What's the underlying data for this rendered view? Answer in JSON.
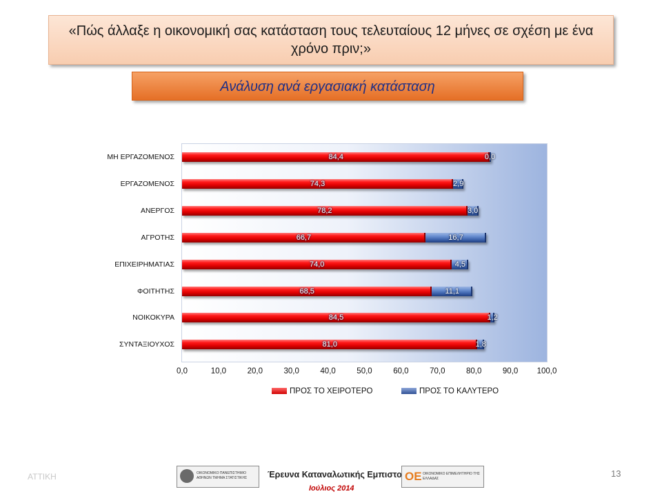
{
  "title": "«Πώς άλλαξε η οικονομική σας κατάσταση τους τελευταίους 12 μήνες σε σχέση με ένα χρόνο πριν;»",
  "subtitle": "Ανάλυση ανά εργασιακή κατάσταση",
  "chart_data": {
    "type": "bar",
    "orientation": "horizontal",
    "stacked": true,
    "categories": [
      "ΜΗ ΕΡΓΑΖΟΜΕΝΟΣ",
      "ΕΡΓΑΖΟΜΕΝΟΣ",
      "ΑΝΕΡΓΟΣ",
      "ΑΓΡΟΤΗΣ",
      "ΕΠΙΧΕΙΡΗΜΑΤΙΑΣ",
      "ΦΟΙΤΗΤΗΣ",
      "ΝΟΙΚΟΚΥΡΑ",
      "ΣΥΝΤΑΞΙΟΥΧΟΣ"
    ],
    "series": [
      {
        "name": "ΠΡΟΣ ΤΟ ΧΕΙΡΟΤΕΡΟ",
        "color": "#e00000",
        "values": [
          84.4,
          74.3,
          78.2,
          66.7,
          74.0,
          68.5,
          84.5,
          81.0
        ],
        "labels": [
          "84,4",
          "74,3",
          "78,2",
          "66,7",
          "74,0",
          "68,5",
          "84,5",
          "81,0"
        ]
      },
      {
        "name": "ΠΡΟΣ ΤΟ ΚΑΛΥΤΕΡΟ",
        "color": "#3f63ad",
        "values": [
          0.0,
          2.9,
          3.0,
          16.7,
          4.5,
          11.1,
          1.2,
          1.8
        ],
        "labels": [
          "0,0",
          "2,9",
          "3,0",
          "16,7",
          "4,5",
          "11,1",
          "1,2",
          "1,8"
        ]
      }
    ],
    "xlim": [
      0,
      100
    ],
    "xticks": [
      "0,0",
      "10,0",
      "20,0",
      "30,0",
      "40,0",
      "50,0",
      "60,0",
      "70,0",
      "80,0",
      "90,0",
      "100,0"
    ],
    "legend_position": "bottom"
  },
  "footer": {
    "region": "ΑΤΤΙΚΗ",
    "logo1_text": "ΟΙΚΟΝΟΜΙΚΟ ΠΑΝΕΠΙΣΤΗΜΙΟ ΑΘΗΝΩΝ ΤΜΗΜΑ ΣΤΑΤΙΣΤΙΚΗΣ",
    "survey_title": "Έρευνα Καταναλωτικής Εμπιστοσύνης",
    "logo2_mark": "ΟΕ",
    "logo2_text": "ΟΙΚΟΝΟΜΙΚΟ ΕΠΙΜΕΛΗΤΗΡΙΟ ΤΗΣ ΕΛΛΑΔΑΣ",
    "date": "Ιούλιος 2014",
    "page_number": "13"
  }
}
